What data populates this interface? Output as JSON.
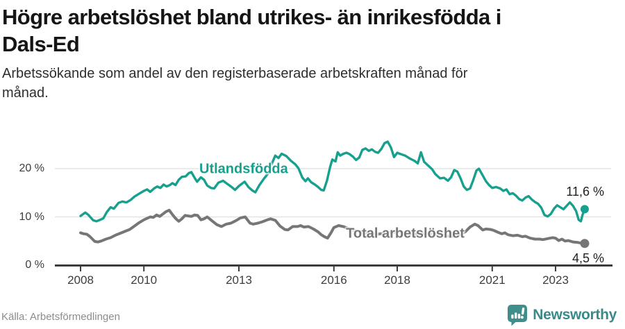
{
  "header": {
    "title_lines": [
      "Högre arbetslöshet bland utrikes- än inrikesfödda i",
      "Dals-Ed"
    ],
    "subtitle_lines": [
      "Arbetssökande som andel av den registerbaserade arbetskraften månad för",
      "månad."
    ]
  },
  "footer": {
    "source": "Källa: Arbetsförmedlingen",
    "brand_name": "Newsworthy",
    "brand_icon": "newsworthy-bubble-chart-icon",
    "brand_color": "#3f8e8c"
  },
  "chart_data": {
    "type": "line",
    "title": "Högre arbetslöshet bland utrikes- än inrikesfödda i Dals-Ed",
    "subtitle": "Arbetssökande som andel av den registerbaserade arbetskraften månad för månad.",
    "xlabel": "",
    "ylabel": "",
    "grid": "horizontal-only",
    "x_range_years": [
      2008,
      2024.3
    ],
    "y_range_pct": [
      0,
      27
    ],
    "x_axis": {
      "ticks": [
        {
          "year": 2008,
          "label": "2008"
        },
        {
          "year": 2010,
          "label": "2010"
        },
        {
          "year": 2013,
          "label": "2013"
        },
        {
          "year": 2016,
          "label": "2016"
        },
        {
          "year": 2018,
          "label": "2018"
        },
        {
          "year": 2021,
          "label": "2021"
        },
        {
          "year": 2023,
          "label": "2023"
        }
      ]
    },
    "y_axis": {
      "ticks": [
        {
          "value": 0,
          "label": "0 %"
        },
        {
          "value": 10,
          "label": "10 %"
        },
        {
          "value": 20,
          "label": "20 %"
        }
      ]
    },
    "series": [
      {
        "name": "Utlandsfödda",
        "color": "#17a08e",
        "line_width": 3.4,
        "end_dot_radius": 6,
        "end_label": "11,6 %",
        "end_value": 11.6,
        "label_anchor": {
          "year": 2011.75,
          "pct": 19.85
        },
        "points": [
          [
            2008.0,
            10.2
          ],
          [
            2008.15,
            10.9
          ],
          [
            2008.25,
            10.4
          ],
          [
            2008.4,
            9.3
          ],
          [
            2008.5,
            9.1
          ],
          [
            2008.62,
            9.4
          ],
          [
            2008.72,
            9.7
          ],
          [
            2008.83,
            11.0
          ],
          [
            2008.95,
            12.0
          ],
          [
            2009.05,
            11.7
          ],
          [
            2009.2,
            12.9
          ],
          [
            2009.32,
            13.2
          ],
          [
            2009.45,
            13.0
          ],
          [
            2009.58,
            13.5
          ],
          [
            2009.7,
            14.2
          ],
          [
            2009.85,
            14.8
          ],
          [
            2010.0,
            15.4
          ],
          [
            2010.1,
            15.7
          ],
          [
            2010.2,
            15.2
          ],
          [
            2010.32,
            15.9
          ],
          [
            2010.42,
            16.3
          ],
          [
            2010.52,
            16.0
          ],
          [
            2010.62,
            16.7
          ],
          [
            2010.72,
            16.3
          ],
          [
            2010.82,
            16.6
          ],
          [
            2010.9,
            17.0
          ],
          [
            2011.0,
            16.6
          ],
          [
            2011.1,
            17.7
          ],
          [
            2011.2,
            18.3
          ],
          [
            2011.32,
            18.4
          ],
          [
            2011.42,
            19.1
          ],
          [
            2011.5,
            19.3
          ],
          [
            2011.6,
            18.1
          ],
          [
            2011.68,
            17.3
          ],
          [
            2011.8,
            18.2
          ],
          [
            2011.9,
            17.7
          ],
          [
            2012.0,
            16.5
          ],
          [
            2012.12,
            16.0
          ],
          [
            2012.22,
            15.9
          ],
          [
            2012.35,
            17.1
          ],
          [
            2012.5,
            17.5
          ],
          [
            2012.62,
            16.9
          ],
          [
            2012.75,
            16.3
          ],
          [
            2012.88,
            15.6
          ],
          [
            2013.0,
            16.4
          ],
          [
            2013.1,
            16.9
          ],
          [
            2013.18,
            17.3
          ],
          [
            2013.3,
            16.2
          ],
          [
            2013.42,
            15.5
          ],
          [
            2013.52,
            15.1
          ],
          [
            2013.65,
            16.6
          ],
          [
            2013.8,
            18.0
          ],
          [
            2013.92,
            19.0
          ],
          [
            2014.02,
            20.7
          ],
          [
            2014.15,
            22.7
          ],
          [
            2014.25,
            22.2
          ],
          [
            2014.35,
            23.1
          ],
          [
            2014.5,
            22.6
          ],
          [
            2014.65,
            21.6
          ],
          [
            2014.78,
            20.9
          ],
          [
            2014.88,
            20.1
          ],
          [
            2015.0,
            18.2
          ],
          [
            2015.1,
            17.4
          ],
          [
            2015.18,
            18.0
          ],
          [
            2015.28,
            17.2
          ],
          [
            2015.4,
            16.7
          ],
          [
            2015.5,
            16.2
          ],
          [
            2015.6,
            15.6
          ],
          [
            2015.68,
            15.5
          ],
          [
            2015.78,
            17.5
          ],
          [
            2015.88,
            20.3
          ],
          [
            2015.95,
            21.9
          ],
          [
            2016.05,
            21.5
          ],
          [
            2016.12,
            23.4
          ],
          [
            2016.2,
            22.7
          ],
          [
            2016.3,
            23.1
          ],
          [
            2016.4,
            23.3
          ],
          [
            2016.5,
            23.0
          ],
          [
            2016.6,
            22.5
          ],
          [
            2016.7,
            21.8
          ],
          [
            2016.8,
            22.3
          ],
          [
            2016.9,
            23.9
          ],
          [
            2017.0,
            24.2
          ],
          [
            2017.1,
            23.7
          ],
          [
            2017.2,
            24.0
          ],
          [
            2017.3,
            23.5
          ],
          [
            2017.4,
            23.3
          ],
          [
            2017.5,
            24.1
          ],
          [
            2017.6,
            25.3
          ],
          [
            2017.7,
            25.6
          ],
          [
            2017.8,
            24.4
          ],
          [
            2017.9,
            22.4
          ],
          [
            2018.0,
            23.3
          ],
          [
            2018.12,
            23.0
          ],
          [
            2018.25,
            22.7
          ],
          [
            2018.4,
            22.1
          ],
          [
            2018.55,
            21.6
          ],
          [
            2018.65,
            21.1
          ],
          [
            2018.75,
            23.4
          ],
          [
            2018.85,
            21.4
          ],
          [
            2019.0,
            20.5
          ],
          [
            2019.1,
            19.9
          ],
          [
            2019.2,
            18.9
          ],
          [
            2019.35,
            18.0
          ],
          [
            2019.48,
            18.1
          ],
          [
            2019.6,
            17.5
          ],
          [
            2019.7,
            18.2
          ],
          [
            2019.8,
            19.7
          ],
          [
            2019.9,
            19.4
          ],
          [
            2020.0,
            18.0
          ],
          [
            2020.1,
            16.3
          ],
          [
            2020.2,
            15.6
          ],
          [
            2020.3,
            15.9
          ],
          [
            2020.4,
            17.6
          ],
          [
            2020.5,
            19.6
          ],
          [
            2020.58,
            20.0
          ],
          [
            2020.7,
            18.6
          ],
          [
            2020.8,
            17.4
          ],
          [
            2020.9,
            16.6
          ],
          [
            2021.0,
            16.0
          ],
          [
            2021.12,
            16.2
          ],
          [
            2021.25,
            15.9
          ],
          [
            2021.35,
            15.4
          ],
          [
            2021.45,
            15.7
          ],
          [
            2021.55,
            14.7
          ],
          [
            2021.65,
            14.9
          ],
          [
            2021.75,
            14.4
          ],
          [
            2021.85,
            13.7
          ],
          [
            2021.95,
            13.4
          ],
          [
            2022.05,
            14.0
          ],
          [
            2022.15,
            14.3
          ],
          [
            2022.25,
            13.6
          ],
          [
            2022.35,
            13.1
          ],
          [
            2022.45,
            12.7
          ],
          [
            2022.55,
            11.9
          ],
          [
            2022.65,
            10.4
          ],
          [
            2022.75,
            10.1
          ],
          [
            2022.85,
            10.6
          ],
          [
            2022.95,
            11.7
          ],
          [
            2023.05,
            12.4
          ],
          [
            2023.15,
            12.0
          ],
          [
            2023.25,
            11.6
          ],
          [
            2023.35,
            12.3
          ],
          [
            2023.45,
            13.0
          ],
          [
            2023.55,
            12.3
          ],
          [
            2023.65,
            11.2
          ],
          [
            2023.73,
            9.4
          ],
          [
            2023.8,
            9.1
          ],
          [
            2023.85,
            10.4
          ],
          [
            2023.92,
            11.6
          ]
        ]
      },
      {
        "name": "Total arbetslöshet",
        "color": "#767676",
        "line_width": 4,
        "end_dot_radius": 6.5,
        "end_label": "4,5 %",
        "end_value": 4.5,
        "label_anchor": {
          "year": 2016.38,
          "pct": 6.45
        },
        "points": [
          [
            2008.0,
            6.7
          ],
          [
            2008.1,
            6.5
          ],
          [
            2008.2,
            6.4
          ],
          [
            2008.3,
            5.9
          ],
          [
            2008.45,
            4.9
          ],
          [
            2008.55,
            4.8
          ],
          [
            2008.65,
            5.0
          ],
          [
            2008.8,
            5.4
          ],
          [
            2008.95,
            5.7
          ],
          [
            2009.1,
            6.2
          ],
          [
            2009.25,
            6.6
          ],
          [
            2009.4,
            7.0
          ],
          [
            2009.55,
            7.4
          ],
          [
            2009.7,
            8.1
          ],
          [
            2009.85,
            8.8
          ],
          [
            2010.0,
            9.4
          ],
          [
            2010.1,
            9.7
          ],
          [
            2010.2,
            10.0
          ],
          [
            2010.3,
            9.9
          ],
          [
            2010.4,
            10.4
          ],
          [
            2010.5,
            10.1
          ],
          [
            2010.6,
            10.6
          ],
          [
            2010.7,
            11.1
          ],
          [
            2010.8,
            11.4
          ],
          [
            2010.9,
            10.5
          ],
          [
            2011.0,
            9.7
          ],
          [
            2011.1,
            9.1
          ],
          [
            2011.2,
            9.6
          ],
          [
            2011.3,
            10.3
          ],
          [
            2011.4,
            10.2
          ],
          [
            2011.5,
            10.1
          ],
          [
            2011.6,
            10.4
          ],
          [
            2011.7,
            10.3
          ],
          [
            2011.8,
            9.4
          ],
          [
            2011.9,
            9.6
          ],
          [
            2012.0,
            10.0
          ],
          [
            2012.15,
            9.2
          ],
          [
            2012.3,
            8.4
          ],
          [
            2012.45,
            8.0
          ],
          [
            2012.6,
            8.5
          ],
          [
            2012.75,
            8.7
          ],
          [
            2012.9,
            9.2
          ],
          [
            2013.05,
            9.8
          ],
          [
            2013.2,
            10.0
          ],
          [
            2013.35,
            8.7
          ],
          [
            2013.45,
            8.5
          ],
          [
            2013.6,
            8.7
          ],
          [
            2013.75,
            9.0
          ],
          [
            2013.9,
            9.4
          ],
          [
            2014.0,
            9.6
          ],
          [
            2014.15,
            9.3
          ],
          [
            2014.3,
            8.1
          ],
          [
            2014.45,
            7.4
          ],
          [
            2014.55,
            7.3
          ],
          [
            2014.7,
            8.0
          ],
          [
            2014.85,
            8.0
          ],
          [
            2014.95,
            8.2
          ],
          [
            2015.05,
            7.9
          ],
          [
            2015.2,
            8.0
          ],
          [
            2015.35,
            7.5
          ],
          [
            2015.5,
            6.9
          ],
          [
            2015.6,
            6.3
          ],
          [
            2015.7,
            5.9
          ],
          [
            2015.8,
            5.6
          ],
          [
            2015.9,
            6.6
          ],
          [
            2016.0,
            7.8
          ],
          [
            2016.15,
            8.2
          ],
          [
            2016.3,
            8.0
          ],
          [
            2016.5,
            7.5
          ],
          [
            2016.7,
            7.1
          ],
          [
            2016.9,
            6.8
          ],
          [
            2017.1,
            6.6
          ],
          [
            2017.35,
            6.4
          ],
          [
            2017.6,
            6.6
          ],
          [
            2017.85,
            6.8
          ],
          [
            2018.05,
            6.9
          ],
          [
            2018.3,
            6.6
          ],
          [
            2018.55,
            6.4
          ],
          [
            2018.8,
            6.5
          ],
          [
            2019.05,
            6.6
          ],
          [
            2019.3,
            6.3
          ],
          [
            2019.55,
            6.1
          ],
          [
            2019.75,
            6.0
          ],
          [
            2019.95,
            6.3
          ],
          [
            2020.15,
            6.9
          ],
          [
            2020.3,
            7.9
          ],
          [
            2020.45,
            8.5
          ],
          [
            2020.55,
            8.2
          ],
          [
            2020.7,
            7.3
          ],
          [
            2020.8,
            7.5
          ],
          [
            2020.95,
            7.4
          ],
          [
            2021.05,
            7.2
          ],
          [
            2021.15,
            6.9
          ],
          [
            2021.3,
            6.5
          ],
          [
            2021.4,
            6.7
          ],
          [
            2021.5,
            6.3
          ],
          [
            2021.65,
            6.1
          ],
          [
            2021.8,
            6.2
          ],
          [
            2021.95,
            5.9
          ],
          [
            2022.05,
            6.0
          ],
          [
            2022.2,
            5.6
          ],
          [
            2022.35,
            5.4
          ],
          [
            2022.5,
            5.4
          ],
          [
            2022.6,
            5.3
          ],
          [
            2022.75,
            5.5
          ],
          [
            2022.9,
            5.7
          ],
          [
            2023.0,
            5.6
          ],
          [
            2023.1,
            5.1
          ],
          [
            2023.2,
            5.4
          ],
          [
            2023.3,
            5.0
          ],
          [
            2023.4,
            5.1
          ],
          [
            2023.55,
            4.8
          ],
          [
            2023.7,
            4.7
          ],
          [
            2023.85,
            4.5
          ],
          [
            2023.92,
            4.5
          ]
        ]
      }
    ]
  }
}
